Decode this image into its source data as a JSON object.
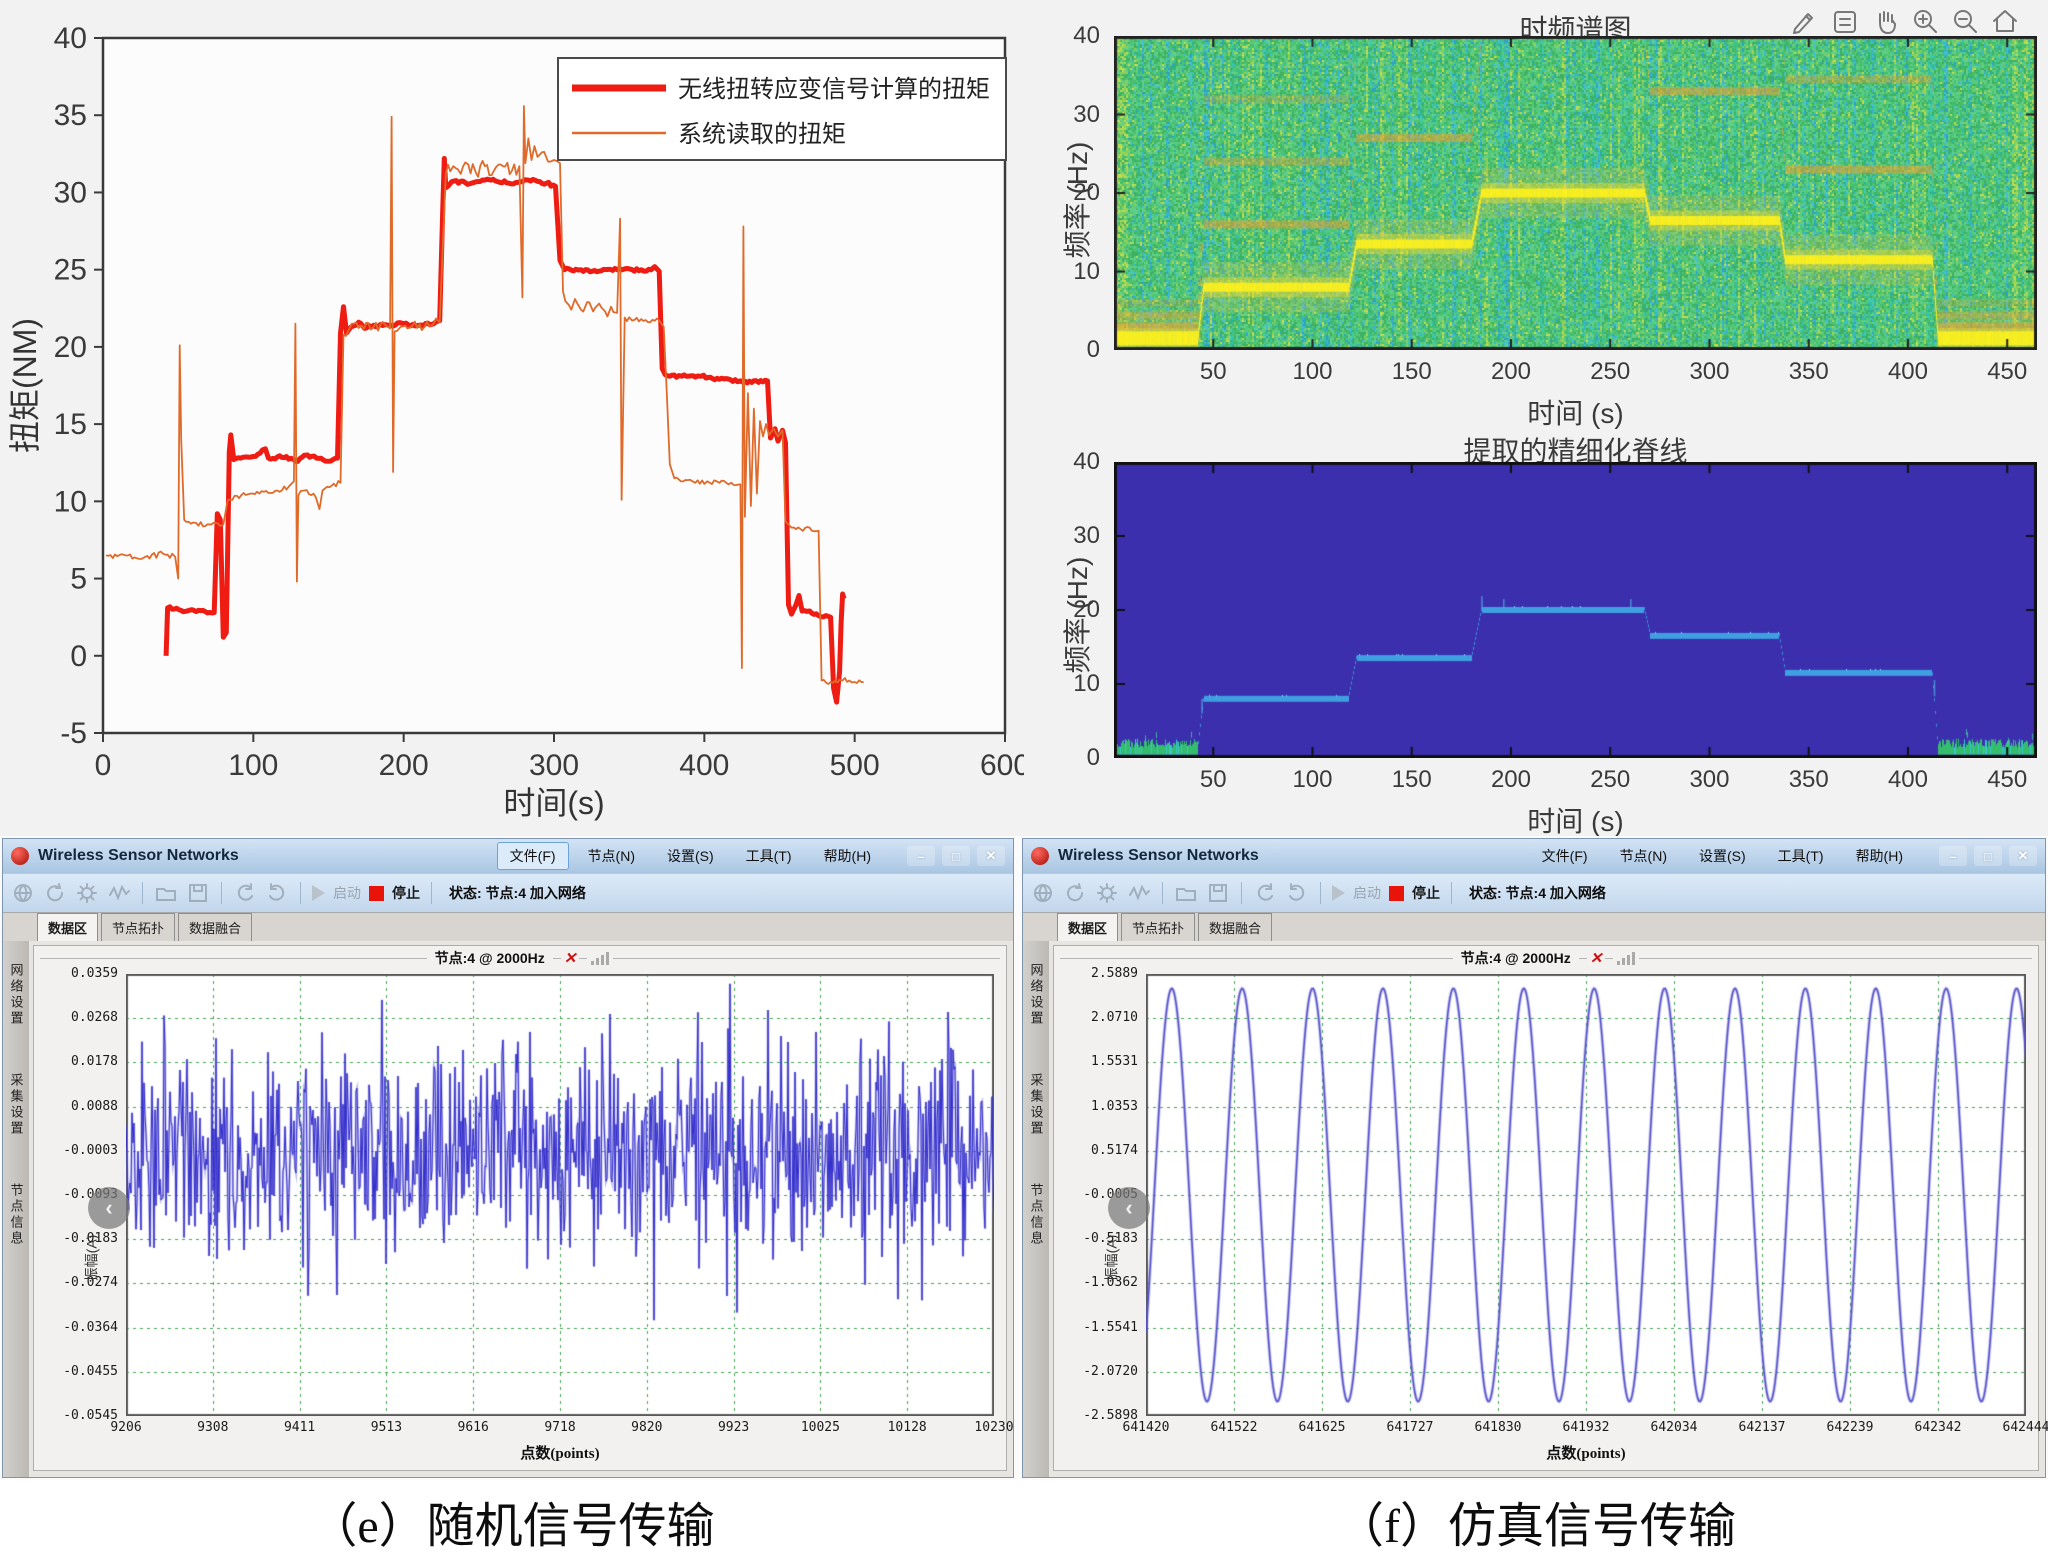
{
  "chart_data": {
    "torque": {
      "type": "line",
      "xlabel": "时间(s)",
      "ylabel": "扭矩(NM)",
      "xlim": [
        0,
        600
      ],
      "ylim": [
        -5,
        40
      ],
      "xticks": [
        0,
        100,
        200,
        300,
        400,
        500,
        600
      ],
      "yticks": [
        -5,
        0,
        5,
        10,
        15,
        20,
        25,
        30,
        35,
        40
      ],
      "legend_position": "upper right",
      "series": [
        {
          "name": "无线扭转应变信号计算的扭矩",
          "color": "#ee1c12",
          "width": 5,
          "points": [
            [
              42,
              0
            ],
            [
              43,
              3.1
            ],
            [
              56,
              2.9
            ],
            [
              74,
              2.8
            ],
            [
              76,
              9.2
            ],
            [
              78,
              8.8
            ],
            [
              80,
              1.2
            ],
            [
              82,
              1.5
            ],
            [
              84,
              13.2
            ],
            [
              85,
              14.3
            ],
            [
              87,
              12.7
            ],
            [
              100,
              12.9
            ],
            [
              108,
              13.4
            ],
            [
              110,
              12.8
            ],
            [
              122,
              12.9
            ],
            [
              128,
              12.6
            ],
            [
              136,
              13
            ],
            [
              142,
              12.8
            ],
            [
              150,
              12.6
            ],
            [
              156,
              12.8
            ],
            [
              158,
              20.9
            ],
            [
              160,
              22.6
            ],
            [
              162,
              20.9
            ],
            [
              165,
              21.3
            ],
            [
              170,
              21.6
            ],
            [
              174,
              21.2
            ],
            [
              180,
              21.4
            ],
            [
              190,
              21.4
            ],
            [
              200,
              21.5
            ],
            [
              210,
              21.4
            ],
            [
              220,
              21.5
            ],
            [
              224,
              21.7
            ],
            [
              226,
              29
            ],
            [
              227,
              32.2
            ],
            [
              228,
              30.3
            ],
            [
              232,
              30.7
            ],
            [
              245,
              30.6
            ],
            [
              258,
              30.8
            ],
            [
              270,
              30.6
            ],
            [
              283,
              30.8
            ],
            [
              295,
              30.6
            ],
            [
              301,
              30.4
            ],
            [
              304,
              25.6
            ],
            [
              307,
              25
            ],
            [
              318,
              25
            ],
            [
              330,
              24.9
            ],
            [
              342,
              25
            ],
            [
              352,
              25
            ],
            [
              360,
              24.9
            ],
            [
              367,
              25.2
            ],
            [
              370,
              24.9
            ],
            [
              372,
              18.6
            ],
            [
              374,
              18.2
            ],
            [
              385,
              18.1
            ],
            [
              398,
              18.1
            ],
            [
              410,
              17.9
            ],
            [
              424,
              17.8
            ],
            [
              436,
              17.7
            ],
            [
              442,
              17.8
            ],
            [
              444,
              14.1
            ],
            [
              447,
              14.7
            ],
            [
              449,
              13.9
            ],
            [
              452,
              14.6
            ],
            [
              454,
              13.8
            ],
            [
              456,
              3.3
            ],
            [
              458,
              2.7
            ],
            [
              461,
              3.3
            ],
            [
              463,
              3.9
            ],
            [
              465,
              2.9
            ],
            [
              470,
              2.9
            ],
            [
              476,
              2.6
            ],
            [
              481,
              2.6
            ],
            [
              484,
              2.5
            ],
            [
              486,
              -2.1
            ],
            [
              488,
              -3
            ],
            [
              490,
              -1
            ],
            [
              491,
              2.1
            ],
            [
              492,
              4
            ],
            [
              493,
              3.7
            ]
          ]
        },
        {
          "name": "系统读取的扭矩",
          "color": "#e06a2a",
          "width": 1.8,
          "points": [
            [
              2,
              6.5
            ],
            [
              15,
              6.5
            ],
            [
              28,
              6.4
            ],
            [
              40,
              6.6
            ],
            [
              48,
              6.4
            ],
            [
              50,
              5
            ],
            [
              51,
              20.1
            ],
            [
              52,
              14
            ],
            [
              54,
              8.8
            ],
            [
              62,
              8.6
            ],
            [
              72,
              8.5
            ],
            [
              80,
              8.5
            ],
            [
              83,
              10.1
            ],
            [
              92,
              10.4
            ],
            [
              104,
              10.5
            ],
            [
              116,
              10.7
            ],
            [
              124,
              11
            ],
            [
              127,
              11.3
            ],
            [
              128,
              21.5
            ],
            [
              129,
              4.8
            ],
            [
              130,
              10.4
            ],
            [
              134,
              10.7
            ],
            [
              140,
              10.5
            ],
            [
              144,
              9.5
            ],
            [
              146,
              10.7
            ],
            [
              152,
              11
            ],
            [
              158,
              11.2
            ],
            [
              160,
              20.8
            ],
            [
              164,
              21.2
            ],
            [
              172,
              21.4
            ],
            [
              180,
              21.3
            ],
            [
              188,
              21.4
            ],
            [
              191,
              21.2
            ],
            [
              192,
              34.9
            ],
            [
              193,
              11.9
            ],
            [
              194,
              21
            ],
            [
              198,
              21.3
            ],
            [
              206,
              21.4
            ],
            [
              214,
              21.3
            ],
            [
              220,
              21.5
            ],
            [
              224,
              21.6
            ],
            [
              228,
              31.2
            ],
            [
              233,
              31.7
            ],
            [
              238,
              31.2
            ],
            [
              243,
              31.8
            ],
            [
              248,
              31.3
            ],
            [
              254,
              31.7
            ],
            [
              260,
              31.4
            ],
            [
              266,
              31.7
            ],
            [
              272,
              31.4
            ],
            [
              277,
              31.7
            ],
            [
              279,
              23.2
            ],
            [
              280,
              35.6
            ],
            [
              281,
              31.9
            ],
            [
              283,
              33.5
            ],
            [
              285,
              32.1
            ],
            [
              287,
              33
            ],
            [
              289,
              32.3
            ],
            [
              292,
              32.6
            ],
            [
              296,
              32
            ],
            [
              300,
              32.1
            ],
            [
              304,
              31.9
            ],
            [
              306,
              23.6
            ],
            [
              310,
              22.7
            ],
            [
              314,
              23.1
            ],
            [
              318,
              22.4
            ],
            [
              322,
              22.9
            ],
            [
              326,
              22.3
            ],
            [
              330,
              22.8
            ],
            [
              334,
              22.3
            ],
            [
              338,
              22.6
            ],
            [
              342,
              22.2
            ],
            [
              344,
              28.3
            ],
            [
              345,
              10.1
            ],
            [
              347,
              21.9
            ],
            [
              352,
              21.7
            ],
            [
              358,
              21.8
            ],
            [
              364,
              21.6
            ],
            [
              370,
              21.7
            ],
            [
              373,
              21.3
            ],
            [
              375,
              17
            ],
            [
              377,
              12.4
            ],
            [
              380,
              11.5
            ],
            [
              386,
              11.3
            ],
            [
              394,
              11.2
            ],
            [
              402,
              11.3
            ],
            [
              410,
              11.2
            ],
            [
              418,
              11.2
            ],
            [
              424,
              11.1
            ],
            [
              425,
              -0.8
            ],
            [
              426,
              27.8
            ],
            [
              427,
              9
            ],
            [
              429,
              17
            ],
            [
              431,
              9.7
            ],
            [
              433,
              16
            ],
            [
              435,
              10.5
            ],
            [
              437,
              15.2
            ],
            [
              439,
              14.2
            ],
            [
              441,
              15
            ],
            [
              443,
              14.3
            ],
            [
              446,
              14.7
            ],
            [
              449,
              14.2
            ],
            [
              452,
              14.6
            ],
            [
              454,
              8.7
            ],
            [
              458,
              8.3
            ],
            [
              464,
              8.2
            ],
            [
              470,
              8.3
            ],
            [
              476,
              8.1
            ],
            [
              478,
              -1.6
            ],
            [
              484,
              -1.7
            ],
            [
              492,
              -1.6
            ],
            [
              500,
              -1.7
            ],
            [
              506,
              -1.7
            ]
          ]
        }
      ]
    },
    "spectrogram": {
      "type": "heatmap",
      "title": "时频谱图",
      "xlabel": "时间 (s)",
      "ylabel": "频率 (Hz)",
      "xlim": [
        0,
        465
      ],
      "ylim": [
        0,
        40
      ],
      "xticks": [
        50,
        100,
        150,
        200,
        250,
        300,
        350,
        400,
        450
      ],
      "yticks": [
        0,
        10,
        20,
        30,
        40
      ],
      "ridge_segments": [
        {
          "t0": 0,
          "t1": 42,
          "f": 1.5
        },
        {
          "t0": 45,
          "t1": 118,
          "f": 8
        },
        {
          "t0": 122,
          "t1": 180,
          "f": 13.5
        },
        {
          "t0": 185,
          "t1": 267,
          "f": 20
        },
        {
          "t0": 270,
          "t1": 335,
          "f": 16.5
        },
        {
          "t0": 338,
          "t1": 412,
          "f": 11.5
        },
        {
          "t0": 415,
          "t1": 465,
          "f": 1.5
        }
      ],
      "colors": {
        "background": "#4ec573",
        "band": "#fbf220",
        "harmonic": "#eba43a"
      }
    },
    "ridge": {
      "type": "line",
      "title": "提取的精细化脊线",
      "xlabel": "时间 (s)",
      "ylabel": "频率 (Hz)",
      "xlim": [
        0,
        465
      ],
      "ylim": [
        0,
        40
      ],
      "xticks": [
        50,
        100,
        150,
        200,
        250,
        300,
        350,
        400,
        450
      ],
      "yticks": [
        0,
        10,
        20,
        30,
        40
      ],
      "segments": [
        {
          "t0": 0,
          "t1": 42,
          "f": 1.2,
          "noisy": true
        },
        {
          "t0": 45,
          "t1": 118,
          "f": 8
        },
        {
          "t0": 122,
          "t1": 180,
          "f": 13.5
        },
        {
          "t0": 185,
          "t1": 267,
          "f": 20
        },
        {
          "t0": 270,
          "t1": 335,
          "f": 16.5
        },
        {
          "t0": 338,
          "t1": 412,
          "f": 11.5
        },
        {
          "t0": 415,
          "t1": 465,
          "f": 1.2,
          "noisy": true
        }
      ],
      "colors": {
        "background": "#3b2fae",
        "line": "#3f9fe0",
        "noise": "#35bd6e"
      }
    },
    "wsn_noise": {
      "type": "line",
      "header": "节点:4 @ 2000Hz",
      "close_glyph": "✕",
      "ylabel": "振幅(A)",
      "xlabel": "点数(points)",
      "yticks": [
        "0.0359",
        "0.0268",
        "0.0178",
        "0.0088",
        "-0.0003",
        "-0.0093",
        "-0.0183",
        "-0.0274",
        "-0.0364",
        "-0.0455",
        "-0.0545"
      ],
      "xticks": [
        "9206",
        "9308",
        "9411",
        "9513",
        "9616",
        "9718",
        "9820",
        "9923",
        "10025",
        "10128",
        "10230"
      ],
      "ymax": 0.0359,
      "ymin": -0.0545,
      "signal": {
        "kind": "random-noise",
        "mean": -0.0003,
        "std": 0.011,
        "color": "#2620c8"
      }
    },
    "wsn_sine": {
      "type": "line",
      "header": "节点:4 @ 2000Hz",
      "close_glyph": "✕",
      "ylabel": "振幅(A)",
      "xlabel": "点数(points)",
      "yticks": [
        "2.5889",
        "2.0710",
        "1.5531",
        "1.0353",
        "0.5174",
        "-0.0005",
        "-0.5183",
        "-1.0362",
        "-1.5541",
        "-2.0720",
        "-2.5898"
      ],
      "xticks": [
        "641420",
        "641522",
        "641625",
        "641727",
        "641830",
        "641932",
        "642034",
        "642137",
        "642239",
        "642342",
        "642444"
      ],
      "ymax": 2.5889,
      "ymin": -2.5898,
      "signal": {
        "kind": "sine",
        "amplitude": 2.42,
        "cycles": 12.5,
        "offset": -0.0005,
        "color": "#6b67d8"
      }
    }
  },
  "plot_toolbar_icons": [
    "edit",
    "list",
    "pan",
    "zoom-in",
    "zoom-out",
    "home"
  ],
  "wsn_toolbar_icons": [
    "world",
    "refresh",
    "gear",
    "wave",
    "folder",
    "save",
    "undo",
    "redo"
  ],
  "wsn_left": {
    "title": "Wireless Sensor Networks",
    "menus": [
      "文件(F)",
      "节点(N)",
      "设置(S)",
      "工具(T)",
      "帮助(H)"
    ],
    "active_menu": 0,
    "window_buttons": [
      "–",
      "□",
      "✕"
    ],
    "start_label": "启动",
    "stop_label": "停止",
    "status_label": "状态: 节点:4 加入网络",
    "tabs": [
      "数据区",
      "节点拓扑",
      "数据融合"
    ],
    "active_tab": 0,
    "sidebar_items": [
      "网络设置",
      "采集设置",
      "节点信息"
    ],
    "collapse_glyph": "‹",
    "chart_key": "wsn_noise",
    "caption": "（e）随机信号传输"
  },
  "wsn_right": {
    "title": "Wireless Sensor Networks",
    "menus": [
      "文件(F)",
      "节点(N)",
      "设置(S)",
      "工具(T)",
      "帮助(H)"
    ],
    "active_menu": -1,
    "window_buttons": [
      "–",
      "□",
      "✕"
    ],
    "start_label": "启动",
    "stop_label": "停止",
    "status_label": "状态: 节点:4 加入网络",
    "tabs": [
      "数据区",
      "节点拓扑",
      "数据融合"
    ],
    "active_tab": 0,
    "sidebar_items": [
      "网络设置",
      "采集设置",
      "节点信息"
    ],
    "collapse_glyph": "‹",
    "chart_key": "wsn_sine",
    "caption": "（f）仿真信号传输"
  }
}
